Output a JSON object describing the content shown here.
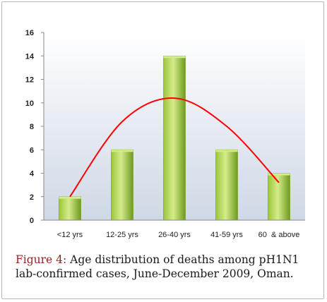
{
  "chart_data": {
    "type": "bar",
    "categories": [
      "<12 yrs",
      "12-25 yrs",
      "26-40 yrs",
      "41-59 yrs",
      "60  & above"
    ],
    "values": [
      2,
      6,
      14,
      6,
      4
    ],
    "yticks": [
      "0",
      "2",
      "4",
      "6",
      "8",
      "10",
      "12",
      "14",
      "16"
    ],
    "ylim": [
      0,
      16
    ],
    "title": "",
    "xlabel": "",
    "ylabel": "",
    "grid": false,
    "legend": "none",
    "trendline": {
      "type": "polynomial",
      "color": "#ff0000",
      "points": [
        2,
        8.4,
        10.4,
        8.0,
        3.2
      ]
    },
    "colors": {
      "bar_light": "#d4ec8a",
      "bar_mid": "#9cc63c",
      "bar_dark": "#6f9a1e",
      "plot_bg_top": "#ffffff",
      "plot_bg_bottom": "#cfd8e6",
      "axis": "#888888"
    }
  },
  "caption": {
    "label": "Figure 4:",
    "text": " Age distribution of deaths among pH1N1 lab-confirmed cases, June-December 2009, Oman."
  }
}
